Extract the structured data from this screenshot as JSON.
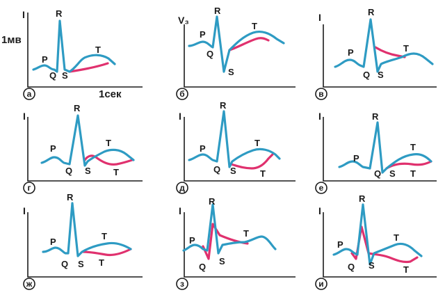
{
  "colors": {
    "normal": "#2e9bc3",
    "abnormal": "#e0316e",
    "ink": "#1a1a1a"
  },
  "calibration": {
    "voltage": "1мв",
    "time": "1сек"
  },
  "panels": [
    {
      "tag": "а",
      "lead": "I",
      "p": "P",
      "q": "Q",
      "r": "R",
      "s": "S",
      "t": "T",
      "t2": ""
    },
    {
      "tag": "б",
      "lead": "V₃",
      "p": "P",
      "q": "Q",
      "r": "R",
      "s": "S",
      "t": "T",
      "t2": ""
    },
    {
      "tag": "в",
      "lead": "I",
      "p": "P",
      "q": "Q",
      "r": "R",
      "s": "S",
      "t": "T",
      "t2": ""
    },
    {
      "tag": "г",
      "lead": "I",
      "p": "P",
      "q": "Q",
      "r": "R",
      "s": "S",
      "t": "T",
      "t2": "T"
    },
    {
      "tag": "д",
      "lead": "I",
      "p": "P",
      "q": "Q",
      "r": "R",
      "s": "S",
      "t": "T",
      "t2": "T"
    },
    {
      "tag": "е",
      "lead": "I",
      "p": "P",
      "q": "Q",
      "r": "R",
      "s": "S",
      "t": "T",
      "t2": "T"
    },
    {
      "tag": "ж",
      "lead": "I",
      "p": "P",
      "q": "Q",
      "r": "R",
      "s": "S",
      "t": "T",
      "t2": "T"
    },
    {
      "tag": "з",
      "lead": "I",
      "p": "P",
      "q": "Q",
      "r": "R",
      "s": "S",
      "t": "T",
      "t2": ""
    },
    {
      "tag": "и",
      "lead": "I",
      "p": "P",
      "q": "Q",
      "r": "R",
      "s": "S",
      "t": "T",
      "t2": "T"
    }
  ]
}
